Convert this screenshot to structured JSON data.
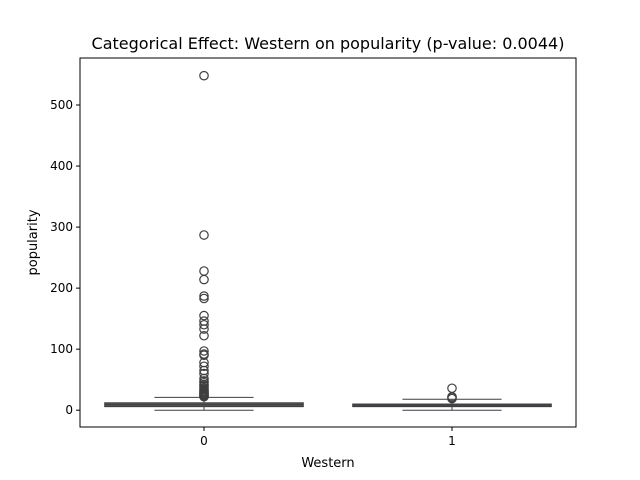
{
  "chart_data": {
    "type": "box",
    "title": "Categorical Effect: Western on popularity (p-value: 0.0044)",
    "xlabel": "Western",
    "ylabel": "popularity",
    "categories": [
      "0",
      "1"
    ],
    "ylim": [
      -27.5,
      577
    ],
    "yticks": [
      0,
      100,
      200,
      300,
      400,
      500
    ],
    "grid": false,
    "colors": {
      "box_fill": "#3b6a8c",
      "box_edge": "#3f3f3f",
      "outlier_edge": "#3f3f3f"
    },
    "boxes": [
      {
        "category": "0",
        "whisker_low": 0,
        "q1": 6,
        "median": 9,
        "q3": 12,
        "whisker_high": 21,
        "outliers": [
          22,
          23,
          24,
          25,
          26,
          27,
          28,
          30,
          31,
          33,
          35,
          37,
          40,
          42,
          45,
          48,
          52,
          60,
          65,
          72,
          78,
          90,
          92,
          97,
          122,
          133,
          140,
          146,
          155,
          183,
          187,
          214,
          228,
          287,
          548
        ]
      },
      {
        "category": "1",
        "whisker_low": 0,
        "q1": 6,
        "median": 8,
        "q3": 10,
        "whisker_high": 18,
        "outliers": [
          19,
          21,
          22,
          36
        ]
      }
    ]
  }
}
